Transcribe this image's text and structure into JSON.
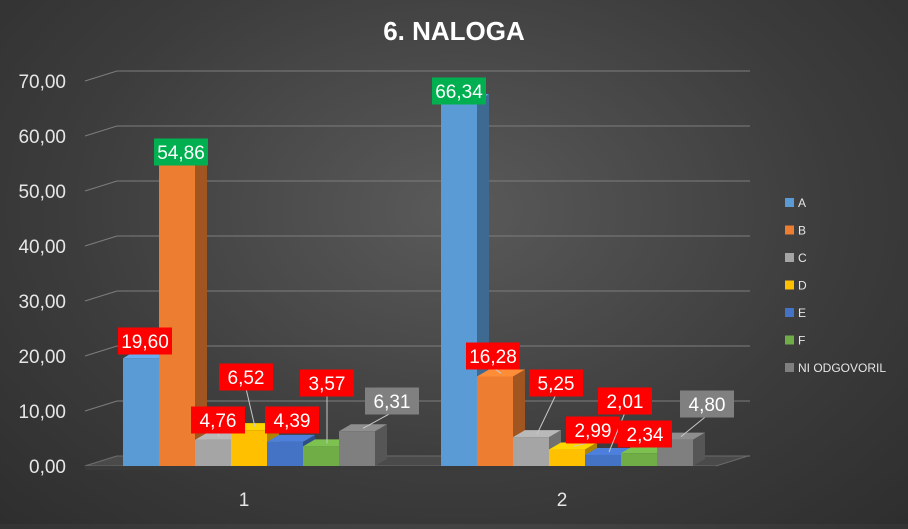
{
  "chart_data": {
    "type": "bar",
    "title": "6. NALOGA",
    "xlabel": "",
    "ylabel": "",
    "categories": [
      "1",
      "2"
    ],
    "ylim": [
      0,
      70
    ],
    "yticks": [
      0,
      10,
      20,
      30,
      40,
      50,
      60,
      70
    ],
    "ytick_labels": [
      "0,00",
      "10,00",
      "20,00",
      "30,00",
      "40,00",
      "50,00",
      "60,00",
      "70,00"
    ],
    "grid": true,
    "legend_position": "right",
    "series": [
      {
        "name": "A",
        "color": "#5b9bd5",
        "values": [
          19.6,
          66.34
        ],
        "labels": [
          "19,60",
          "66,34"
        ],
        "label_colors": [
          "#ff0000",
          "#00b050"
        ]
      },
      {
        "name": "B",
        "color": "#ed7d31",
        "values": [
          54.86,
          16.28
        ],
        "labels": [
          "54,86",
          "16,28"
        ],
        "label_colors": [
          "#00b050",
          "#ff0000"
        ]
      },
      {
        "name": "C",
        "color": "#a5a5a5",
        "values": [
          4.76,
          5.25
        ],
        "labels": [
          "4,76",
          "5,25"
        ],
        "label_colors": [
          "#ff0000",
          "#ff0000"
        ]
      },
      {
        "name": "D",
        "color": "#ffc000",
        "values": [
          6.52,
          2.99
        ],
        "labels": [
          "6,52",
          "2,99"
        ],
        "label_colors": [
          "#ff0000",
          "#ff0000"
        ]
      },
      {
        "name": "E",
        "color": "#4472c4",
        "values": [
          4.39,
          2.01
        ],
        "labels": [
          "4,39",
          "2,01"
        ],
        "label_colors": [
          "#ff0000",
          "#ff0000"
        ]
      },
      {
        "name": "F",
        "color": "#70ad47",
        "values": [
          3.57,
          2.34
        ],
        "labels": [
          "3,57",
          "2,34"
        ],
        "label_colors": [
          "#ff0000",
          "#ff0000"
        ]
      },
      {
        "name": "NI ODGOVORIL",
        "color": "#7f7f7f",
        "values": [
          6.31,
          4.8
        ],
        "labels": [
          "6,31",
          "4,80"
        ],
        "label_colors": [
          "#808080",
          "#808080"
        ]
      }
    ]
  }
}
